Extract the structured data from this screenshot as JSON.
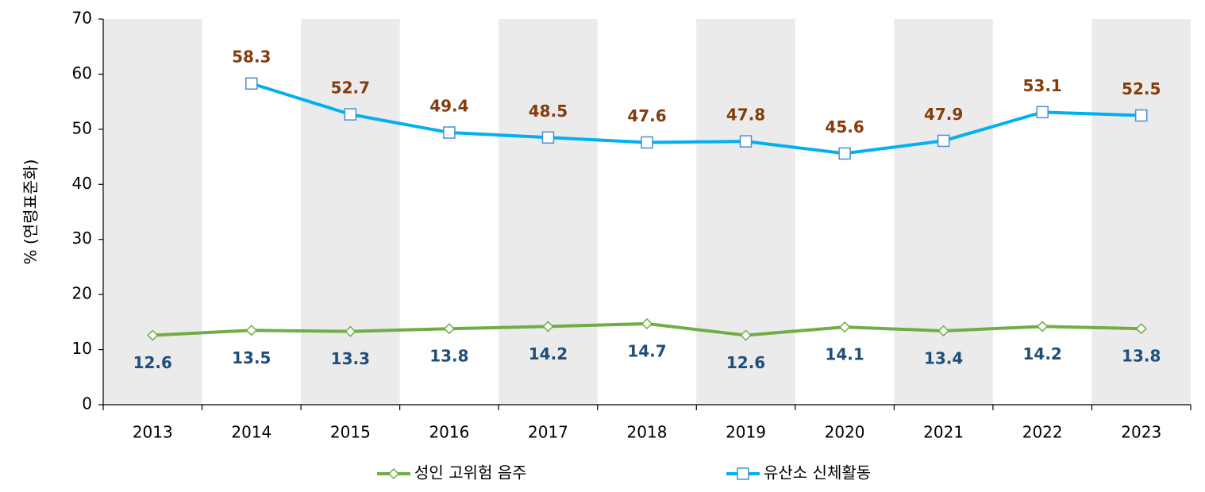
{
  "chart_data": {
    "type": "line",
    "y_label": "% (연령표준화)",
    "categories": [
      "2013",
      "2014",
      "2015",
      "2016",
      "2017",
      "2018",
      "2019",
      "2020",
      "2021",
      "2022",
      "2023"
    ],
    "series": [
      {
        "name": "성인 고위험 음주",
        "color": "#70ad47",
        "marker": "diamond",
        "values": [
          12.6,
          13.5,
          13.3,
          13.8,
          14.2,
          14.7,
          12.6,
          14.1,
          13.4,
          14.2,
          13.8
        ]
      },
      {
        "name": "유산소 신체활동",
        "color": "#00b0f0",
        "marker": "square",
        "values": [
          null,
          58.3,
          52.7,
          49.4,
          48.5,
          47.6,
          47.8,
          45.6,
          47.9,
          53.1,
          52.5
        ]
      }
    ],
    "ylim": [
      0,
      70
    ],
    "yticks": [
      0,
      10,
      20,
      30,
      40,
      50,
      60,
      70
    ],
    "legend": "bottom"
  }
}
